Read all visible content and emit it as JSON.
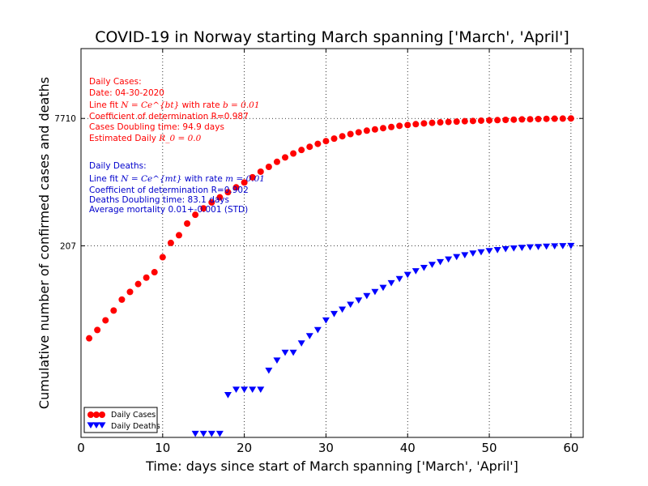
{
  "chart_data": {
    "type": "scatter",
    "title": "COVID-19 in Norway starting March spanning ['March', 'April']",
    "xlabel": "Time: days since start of March spanning ['March', 'April']",
    "ylabel": "Cumulative number of confirmed cases and deaths",
    "xlim": [
      0,
      61.5
    ],
    "x_ticks": [
      0,
      10,
      20,
      30,
      40,
      50,
      60
    ],
    "y_scale": "log",
    "ylim": [
      0.9,
      56000
    ],
    "y_ticks": [
      207,
      7710
    ],
    "grid": "dotted",
    "legend_position": "lower-left",
    "series": [
      {
        "name": "Daily Cases",
        "color": "#ff0000",
        "marker": "circle",
        "x": [
          1,
          2,
          3,
          4,
          5,
          6,
          7,
          8,
          9,
          10,
          11,
          12,
          13,
          14,
          15,
          16,
          17,
          18,
          19,
          20,
          21,
          22,
          23,
          24,
          25,
          26,
          27,
          28,
          29,
          30,
          31,
          32,
          33,
          34,
          35,
          36,
          37,
          38,
          39,
          40,
          41,
          42,
          43,
          44,
          45,
          46,
          47,
          48,
          49,
          50,
          51,
          52,
          53,
          54,
          55,
          56,
          57,
          58,
          59,
          60
        ],
        "values": [
          15,
          19,
          25,
          33,
          45,
          56,
          70,
          84,
          98,
          150,
          225,
          280,
          390,
          500,
          600,
          710,
          820,
          950,
          1090,
          1250,
          1450,
          1700,
          1950,
          2250,
          2550,
          2850,
          3150,
          3450,
          3750,
          4050,
          4350,
          4650,
          4950,
          5200,
          5450,
          5650,
          5850,
          6050,
          6250,
          6400,
          6550,
          6700,
          6800,
          6900,
          6980,
          7050,
          7120,
          7180,
          7240,
          7300,
          7350,
          7400,
          7450,
          7500,
          7540,
          7580,
          7620,
          7650,
          7680,
          7710
        ]
      },
      {
        "name": "Daily Deaths",
        "color": "#0000ff",
        "marker": "triangle-down",
        "x": [
          14,
          15,
          16,
          17,
          18,
          19,
          20,
          21,
          22,
          23,
          24,
          25,
          26,
          27,
          28,
          29,
          30,
          31,
          32,
          33,
          34,
          35,
          36,
          37,
          38,
          39,
          40,
          41,
          42,
          43,
          44,
          45,
          46,
          47,
          48,
          49,
          50,
          51,
          52,
          53,
          54,
          55,
          56,
          57,
          58,
          59,
          60
        ],
        "values": [
          1,
          1,
          1,
          1,
          3,
          3.5,
          3.5,
          3.5,
          3.5,
          6,
          8,
          10,
          10,
          13,
          16,
          19,
          25,
          30,
          34,
          39,
          44,
          50,
          56,
          63,
          72,
          81,
          91,
          101,
          111,
          121,
          131,
          141,
          151,
          159,
          167,
          173,
          179,
          184,
          189,
          193,
          196,
          199,
          201,
          203,
          205,
          206,
          207
        ]
      }
    ]
  },
  "annotations": {
    "cases": {
      "heading": "Daily Cases:",
      "date": "Date: 04-30-2020",
      "fit_prefix": "Line fit ",
      "fit_formula": "N = Ce^{bt}",
      "fit_suffix": " with rate ",
      "fit_rate": "b = 0.01",
      "r_coef": "Coefficient of determination R=0.987",
      "doubling": "Cases Doubling time: 94.9 days",
      "r0_prefix": "Estimated Daily ",
      "r0_formula": "R_0 = 0.0"
    },
    "deaths": {
      "heading": "Daily Deaths:",
      "fit_prefix": "Line fit ",
      "fit_formula": "N = Ce^{mt}",
      "fit_suffix": " with rate ",
      "fit_rate": "m = 0.01",
      "r_coef": "Coefficient of determination R=0.902",
      "doubling": "Deaths Doubling time: 83.1 days",
      "mortality": "Average mortality 0.01+-0.001 (STD)"
    },
    "colors": {
      "cases": "#ff0000",
      "deaths": "#0000cc"
    }
  }
}
